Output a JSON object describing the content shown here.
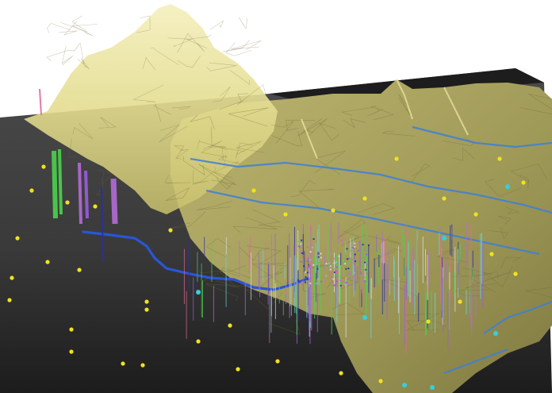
{
  "scene": {
    "kind": "3d-terrain-visualization",
    "background_color": "#ffffff",
    "ground_color": "#3a3a3a",
    "ground_dark_color": "#1f1f1f",
    "surface_color": "#c9c47a",
    "surface_light_color": "#efe9a6",
    "surface_shadow_color": "#6f6a38",
    "river_color": "#2a55d6",
    "contour_color": "#3d7fd8",
    "yellow_marker_color": "#f2e21c",
    "cyan_marker_color": "#33d0e0",
    "well_colors": [
      "#4dd24d",
      "#b36bd6",
      "#9a5ce0",
      "#2b2fa0",
      "#e06a9a",
      "#6fd0d0",
      "#d8d8d8"
    ]
  }
}
